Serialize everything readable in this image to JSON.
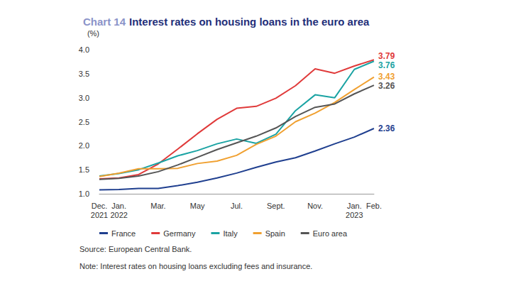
{
  "chart_data": {
    "type": "line",
    "title": "Chart 14 Interest rates on housing loans in the euro area",
    "ylabel": "(%)",
    "categories": [
      "Dec.\n2021",
      "Jan.\n2022",
      null,
      "Mar.",
      null,
      "May",
      null,
      "Jul.",
      null,
      "Sept.",
      null,
      "Nov.",
      null,
      "Jan.\n2023",
      "Feb."
    ],
    "series": [
      {
        "name": "France",
        "color": "#1f3f8f",
        "values": [
          1.08,
          1.09,
          1.11,
          1.11,
          1.17,
          1.24,
          1.33,
          1.43,
          1.55,
          1.66,
          1.75,
          1.89,
          2.04,
          2.18,
          2.36
        ],
        "value_labels": [
          null,
          null,
          null,
          null,
          null,
          null,
          null,
          null,
          null,
          null,
          null,
          null,
          null,
          null,
          "2.36"
        ]
      },
      {
        "name": "Germany",
        "color": "#e03a3a",
        "values": [
          1.31,
          1.33,
          1.4,
          1.62,
          1.93,
          2.25,
          2.55,
          2.78,
          2.82,
          2.99,
          3.25,
          3.6,
          3.51,
          3.66,
          3.79
        ],
        "value_labels": [
          null,
          null,
          null,
          null,
          null,
          null,
          null,
          null,
          null,
          null,
          null,
          null,
          null,
          null,
          "3.79"
        ]
      },
      {
        "name": "Italy",
        "color": "#1aa3a3",
        "values": [
          1.37,
          1.42,
          1.5,
          1.64,
          1.79,
          1.9,
          2.04,
          2.14,
          2.05,
          2.24,
          2.73,
          3.06,
          3.0,
          3.59,
          3.76
        ],
        "value_labels": [
          null,
          null,
          null,
          null,
          null,
          null,
          null,
          null,
          null,
          null,
          null,
          null,
          null,
          null,
          "3.76"
        ]
      },
      {
        "name": "Spain",
        "color": "#f0a030",
        "values": [
          1.36,
          1.43,
          1.52,
          1.52,
          1.53,
          1.63,
          1.68,
          1.8,
          2.03,
          2.2,
          2.5,
          2.68,
          2.9,
          3.17,
          3.43
        ],
        "value_labels": [
          null,
          null,
          null,
          null,
          null,
          null,
          null,
          null,
          null,
          null,
          null,
          null,
          null,
          null,
          "3.43"
        ]
      },
      {
        "name": "Euro area",
        "color": "#555555",
        "values": [
          1.3,
          1.32,
          1.37,
          1.46,
          1.6,
          1.76,
          1.92,
          2.06,
          2.2,
          2.37,
          2.61,
          2.8,
          2.87,
          3.08,
          3.26
        ],
        "value_labels": [
          null,
          null,
          null,
          null,
          null,
          null,
          null,
          null,
          null,
          null,
          null,
          null,
          null,
          null,
          "3.26"
        ]
      }
    ],
    "ylim": [
      1,
      4
    ],
    "yticks": [
      {
        "value": 1,
        "label": "1.0"
      },
      1.5,
      {
        "value": 2,
        "label": "2.0"
      },
      2.5,
      {
        "value": 3,
        "label": "3.0"
      },
      3.5,
      {
        "value": 4,
        "label": "4.0"
      }
    ],
    "grid": false,
    "legend": "bottom-left",
    "annotations": [
      "Source: European Central Bank.",
      "Note: Interest rates on housing loans excluding fees and insurance."
    ]
  }
}
